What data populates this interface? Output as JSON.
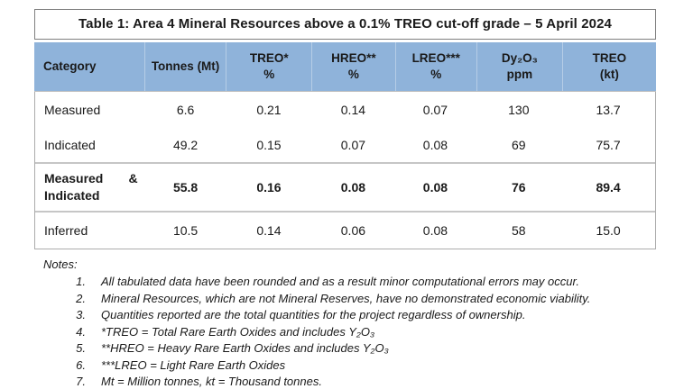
{
  "title": "Table 1: Area 4 Mineral Resources above a 0.1% TREO cut-off grade – 5 April 2024",
  "table": {
    "columns": [
      {
        "line1": "Category",
        "line2": ""
      },
      {
        "line1": "Tonnes (Mt)",
        "line2": ""
      },
      {
        "line1": "TREO*",
        "line2": "%"
      },
      {
        "line1": "HREO**",
        "line2": "%"
      },
      {
        "line1": "LREO***",
        "line2": "%"
      },
      {
        "line1": "Dy₂O₃",
        "line2": "ppm"
      },
      {
        "line1": "TREO",
        "line2": "(kt)"
      }
    ],
    "rows": [
      {
        "category": "Measured",
        "values": [
          "6.6",
          "0.21",
          "0.14",
          "0.07",
          "130",
          "13.7"
        ]
      },
      {
        "category": "Indicated",
        "values": [
          "49.2",
          "0.15",
          "0.07",
          "0.08",
          "69",
          "75.7"
        ]
      },
      {
        "category": "Measured & Indicated",
        "values": [
          "55.8",
          "0.16",
          "0.08",
          "0.08",
          "76",
          "89.4"
        ]
      },
      {
        "category": "Inferred",
        "values": [
          "10.5",
          "0.14",
          "0.06",
          "0.08",
          "58",
          "15.0"
        ]
      }
    ]
  },
  "notes": {
    "heading": "Notes:",
    "items": [
      {
        "num": "1.",
        "text": "All tabulated data have been rounded and as a result minor computational errors may occur."
      },
      {
        "num": "2.",
        "text": "Mineral Resources, which are not Mineral Reserves, have no demonstrated economic viability."
      },
      {
        "num": "3.",
        "text": "Quantities reported are the total quantities for the project regardless of ownership."
      },
      {
        "num": "4.",
        "text": "*TREO = Total Rare Earth Oxides and includes Y₂O₃"
      },
      {
        "num": "5.",
        "text": "**HREO = Heavy Rare Earth Oxides and includes Y₂O₃"
      },
      {
        "num": "6.",
        "text": "***LREO = Light Rare Earth Oxides"
      },
      {
        "num": "7.",
        "text": "Mt = Million tonnes, kt = Thousand tonnes."
      }
    ]
  },
  "colors": {
    "header_bg": "#8FB3DA",
    "table_border": "#ABABAB",
    "section_separator": "#C6C6C6",
    "title_border": "#7F7F7F",
    "text": "#1A1A1A"
  }
}
